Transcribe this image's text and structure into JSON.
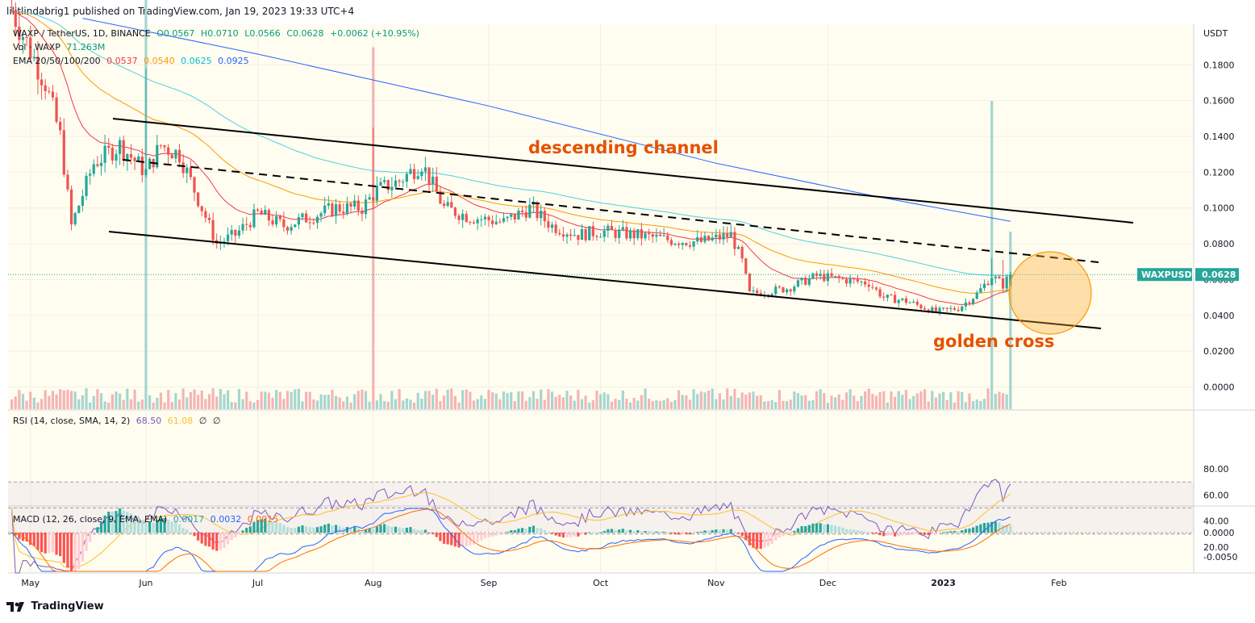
{
  "publisher": {
    "text": "lilitlindabrig1 published on TradingView.com, Jan 19, 2023 19:33 UTC+4"
  },
  "legend": {
    "symbol": "WAXP / TetherUS, 1D, BINANCE",
    "open": "O0.0567",
    "high": "H0.0710",
    "low": "L0.0566",
    "close": "C0.0628",
    "change": "+0.0062 (+10.95%)",
    "vol_label": "Vol · WAXP",
    "vol_value": "71.263M",
    "ema_label": "EMA 20/50/100/200",
    "ema20": "0.0537",
    "ema50": "0.0540",
    "ema100": "0.0625",
    "ema200": "0.0925",
    "rsi_label": "RSI (14, close, SMA, 14, 2)",
    "rsi_value": "68.50",
    "rsi_sma": "61.08",
    "rsi_e1": "∅",
    "rsi_e2": "∅",
    "macd_label": "MACD (12, 26, close, 9, EMA, EMA)",
    "macd_hist": "0.0017",
    "macd_line": "0.0032",
    "macd_signal": "0.0015"
  },
  "annotations": {
    "channel": "descending channel",
    "cross": "golden cross"
  },
  "price_tag": {
    "symbol": "WAXPUSDT",
    "value": "0.0628"
  },
  "footer": {
    "brand": "TradingView"
  },
  "colors": {
    "up": "#26a69a",
    "down": "#ef5350",
    "ema20": "#f23645",
    "ema50": "#ff9800",
    "ema100": "#4dd0e1",
    "ema200": "#2962ff",
    "annot": "#e65100",
    "rsi": "#7e57c2",
    "rsi_sma": "#fbc02d",
    "macd": "#2962ff",
    "signal": "#ff6d00"
  },
  "chart_data": {
    "type": "candlestick",
    "title": "WAXP / TetherUS, 1D, BINANCE",
    "y_unit": "USDT",
    "ylim": [
      -0.004,
      0.2
    ],
    "y_ticks": [
      "0.1800",
      "0.1600",
      "0.1400",
      "0.1200",
      "0.1000",
      "0.0800",
      "0.0600",
      "0.0400",
      "0.0200",
      "0.0000"
    ],
    "x_ticks": [
      "May",
      "Jun",
      "Jul",
      "Aug",
      "Sep",
      "Oct",
      "Nov",
      "Dec",
      "2023",
      "Feb"
    ],
    "close_series": [
      {
        "date": "2022-04-25",
        "close": 0.215
      },
      {
        "date": "2022-05-05",
        "close": 0.17
      },
      {
        "date": "2022-05-09",
        "close": 0.14
      },
      {
        "date": "2022-05-12",
        "close": 0.09
      },
      {
        "date": "2022-05-18",
        "close": 0.125
      },
      {
        "date": "2022-05-25",
        "close": 0.135
      },
      {
        "date": "2022-06-01",
        "close": 0.12
      },
      {
        "date": "2022-06-05",
        "close": 0.135
      },
      {
        "date": "2022-06-10",
        "close": 0.13
      },
      {
        "date": "2022-06-15",
        "close": 0.105
      },
      {
        "date": "2022-06-20",
        "close": 0.08
      },
      {
        "date": "2022-06-25",
        "close": 0.085
      },
      {
        "date": "2022-07-01",
        "close": 0.097
      },
      {
        "date": "2022-07-08",
        "close": 0.09
      },
      {
        "date": "2022-07-15",
        "close": 0.095
      },
      {
        "date": "2022-07-22",
        "close": 0.1
      },
      {
        "date": "2022-07-29",
        "close": 0.1
      },
      {
        "date": "2022-08-02",
        "close": 0.11
      },
      {
        "date": "2022-08-08",
        "close": 0.115
      },
      {
        "date": "2022-08-14",
        "close": 0.125
      },
      {
        "date": "2022-08-20",
        "close": 0.1
      },
      {
        "date": "2022-08-27",
        "close": 0.095
      },
      {
        "date": "2022-09-05",
        "close": 0.092
      },
      {
        "date": "2022-09-12",
        "close": 0.1
      },
      {
        "date": "2022-09-18",
        "close": 0.09
      },
      {
        "date": "2022-09-25",
        "close": 0.085
      },
      {
        "date": "2022-10-01",
        "close": 0.087
      },
      {
        "date": "2022-10-10",
        "close": 0.085
      },
      {
        "date": "2022-10-20",
        "close": 0.082
      },
      {
        "date": "2022-10-28",
        "close": 0.081
      },
      {
        "date": "2022-11-05",
        "close": 0.085
      },
      {
        "date": "2022-11-08",
        "close": 0.07
      },
      {
        "date": "2022-11-10",
        "close": 0.052
      },
      {
        "date": "2022-11-20",
        "close": 0.055
      },
      {
        "date": "2022-11-28",
        "close": 0.062
      },
      {
        "date": "2022-12-05",
        "close": 0.06
      },
      {
        "date": "2022-12-12",
        "close": 0.058
      },
      {
        "date": "2022-12-16",
        "close": 0.05
      },
      {
        "date": "2022-12-22",
        "close": 0.048
      },
      {
        "date": "2022-12-30",
        "close": 0.042
      },
      {
        "date": "2023-01-05",
        "close": 0.044
      },
      {
        "date": "2023-01-10",
        "close": 0.052
      },
      {
        "date": "2023-01-14",
        "close": 0.062
      },
      {
        "date": "2023-01-17",
        "close": 0.057
      },
      {
        "date": "2023-01-19",
        "close": 0.0628
      }
    ],
    "ema200_series": [
      {
        "date": "2022-05-15",
        "value": 0.206
      },
      {
        "date": "2022-07-01",
        "value": 0.186
      },
      {
        "date": "2022-09-01",
        "value": 0.157
      },
      {
        "date": "2022-11-01",
        "value": 0.125
      },
      {
        "date": "2022-12-15",
        "value": 0.106
      },
      {
        "date": "2023-01-19",
        "value": 0.0925
      }
    ],
    "rsi": {
      "ylim": [
        0,
        100
      ],
      "ticks": [
        "80.00",
        "60.00",
        "40.00",
        "20.00"
      ],
      "bands": [
        30,
        70
      ],
      "last": 68.5,
      "sma_last": 61.08
    },
    "macd": {
      "ticks": [
        "0.0000",
        "-0.0050"
      ],
      "last_hist": 0.0017,
      "last_macd": 0.0032,
      "last_signal": 0.0015
    }
  }
}
